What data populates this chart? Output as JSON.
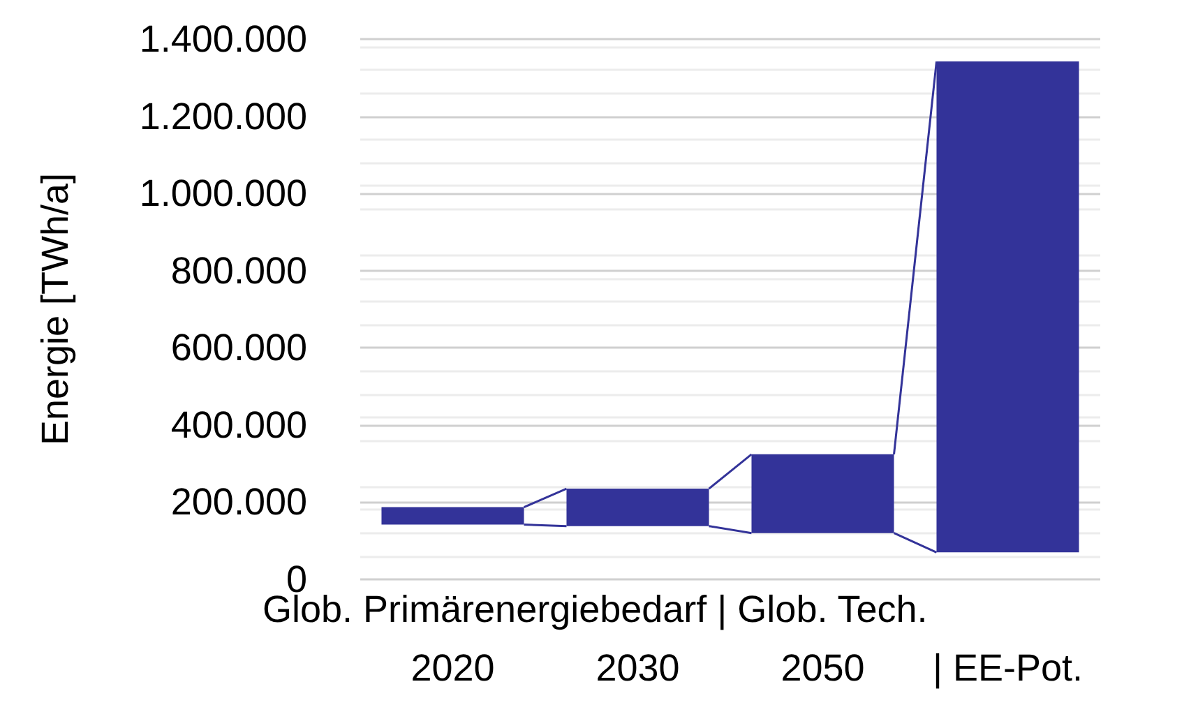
{
  "chart_data": {
    "type": "bar",
    "ylabel": "Energie [TWh/a]",
    "xlabel": "Glob. Primärenergiebedarf | Glob. Tech.",
    "categories": [
      "2020",
      "2030",
      "2050",
      "| EE-Pot."
    ],
    "base": [
      142000,
      138000,
      120000,
      70000
    ],
    "values": [
      45000,
      97000,
      204000,
      1272000
    ],
    "color": "#333399",
    "ylim": [
      0,
      1400000
    ],
    "yticks": [
      0,
      {
        "value": 200000,
        "label": "200.000"
      },
      {
        "value": 400000,
        "label": "400.000"
      },
      {
        "value": 600000,
        "label": "600.000"
      },
      {
        "value": 800000,
        "label": "800.000"
      },
      {
        "value": 1000000,
        "label": "1.000.000"
      },
      {
        "value": 1200000,
        "label": "1.200.000"
      },
      {
        "value": 1400000,
        "label": "1.400.000"
      }
    ],
    "grid": "y"
  }
}
